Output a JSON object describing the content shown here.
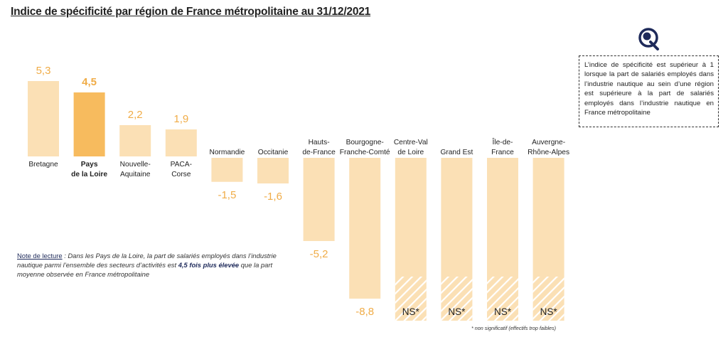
{
  "title": "Indice de spécificité par région de France métropolitaine au 31/12/2021",
  "info_box": "L’indice de spécificité est supérieur à 1 lorsque la part de salariés employés dans l’industrie nautique au sein d’une région est supérieure à la part de salariés employés dans l’industrie nautique en France métropolitaine",
  "note": {
    "label": "Note de lecture",
    "part1": " : Dans les Pays de la Loire, la part de salariés employés dans l’industrie nautique parmi l’ensemble des secteurs d’activités est ",
    "emphasis": "4,5 fois plus élevée",
    "part2": " que la part moyenne observée en France métropolitaine"
  },
  "footnote": "* non significatif (effectifs trop faibles)",
  "colors": {
    "bar": "#fbe0b5",
    "bar_highlight": "#f7bb5e",
    "value_label": "#f0ac47",
    "text": "#222222",
    "stripe": "#ffffff"
  },
  "chart_data": {
    "type": "bar",
    "title": "Indice de spécificité par région de France métropolitaine au 31/12/2021",
    "categories": [
      [
        "Bretagne"
      ],
      [
        "Pays",
        "de la Loire"
      ],
      [
        "Nouvelle-",
        "Aquitaine"
      ],
      [
        "PACA-",
        "Corse"
      ],
      [
        "Normandie"
      ],
      [
        "Occitanie"
      ],
      [
        "Hauts-",
        "de-France"
      ],
      [
        "Bourgogne-",
        "Franche-Comté"
      ],
      [
        "Centre-Val",
        "de Loire"
      ],
      [
        "Grand Est"
      ],
      [
        "Île-de-",
        "France"
      ],
      [
        "Auvergne-",
        "Rhône-Alpes"
      ]
    ],
    "values": [
      5.3,
      4.5,
      2.2,
      1.9,
      -1.5,
      -1.6,
      -5.2,
      -8.8,
      null,
      null,
      null,
      null
    ],
    "value_labels": [
      "5,3",
      "4,5",
      "2,2",
      "1,9",
      "-1,5",
      "-1,6",
      "-5,2",
      "-8,8",
      "NS*",
      "NS*",
      "NS*",
      "NS*"
    ],
    "highlight_index": 1,
    "not_significant": [
      false,
      false,
      false,
      false,
      false,
      false,
      false,
      false,
      true,
      true,
      true,
      true
    ]
  }
}
